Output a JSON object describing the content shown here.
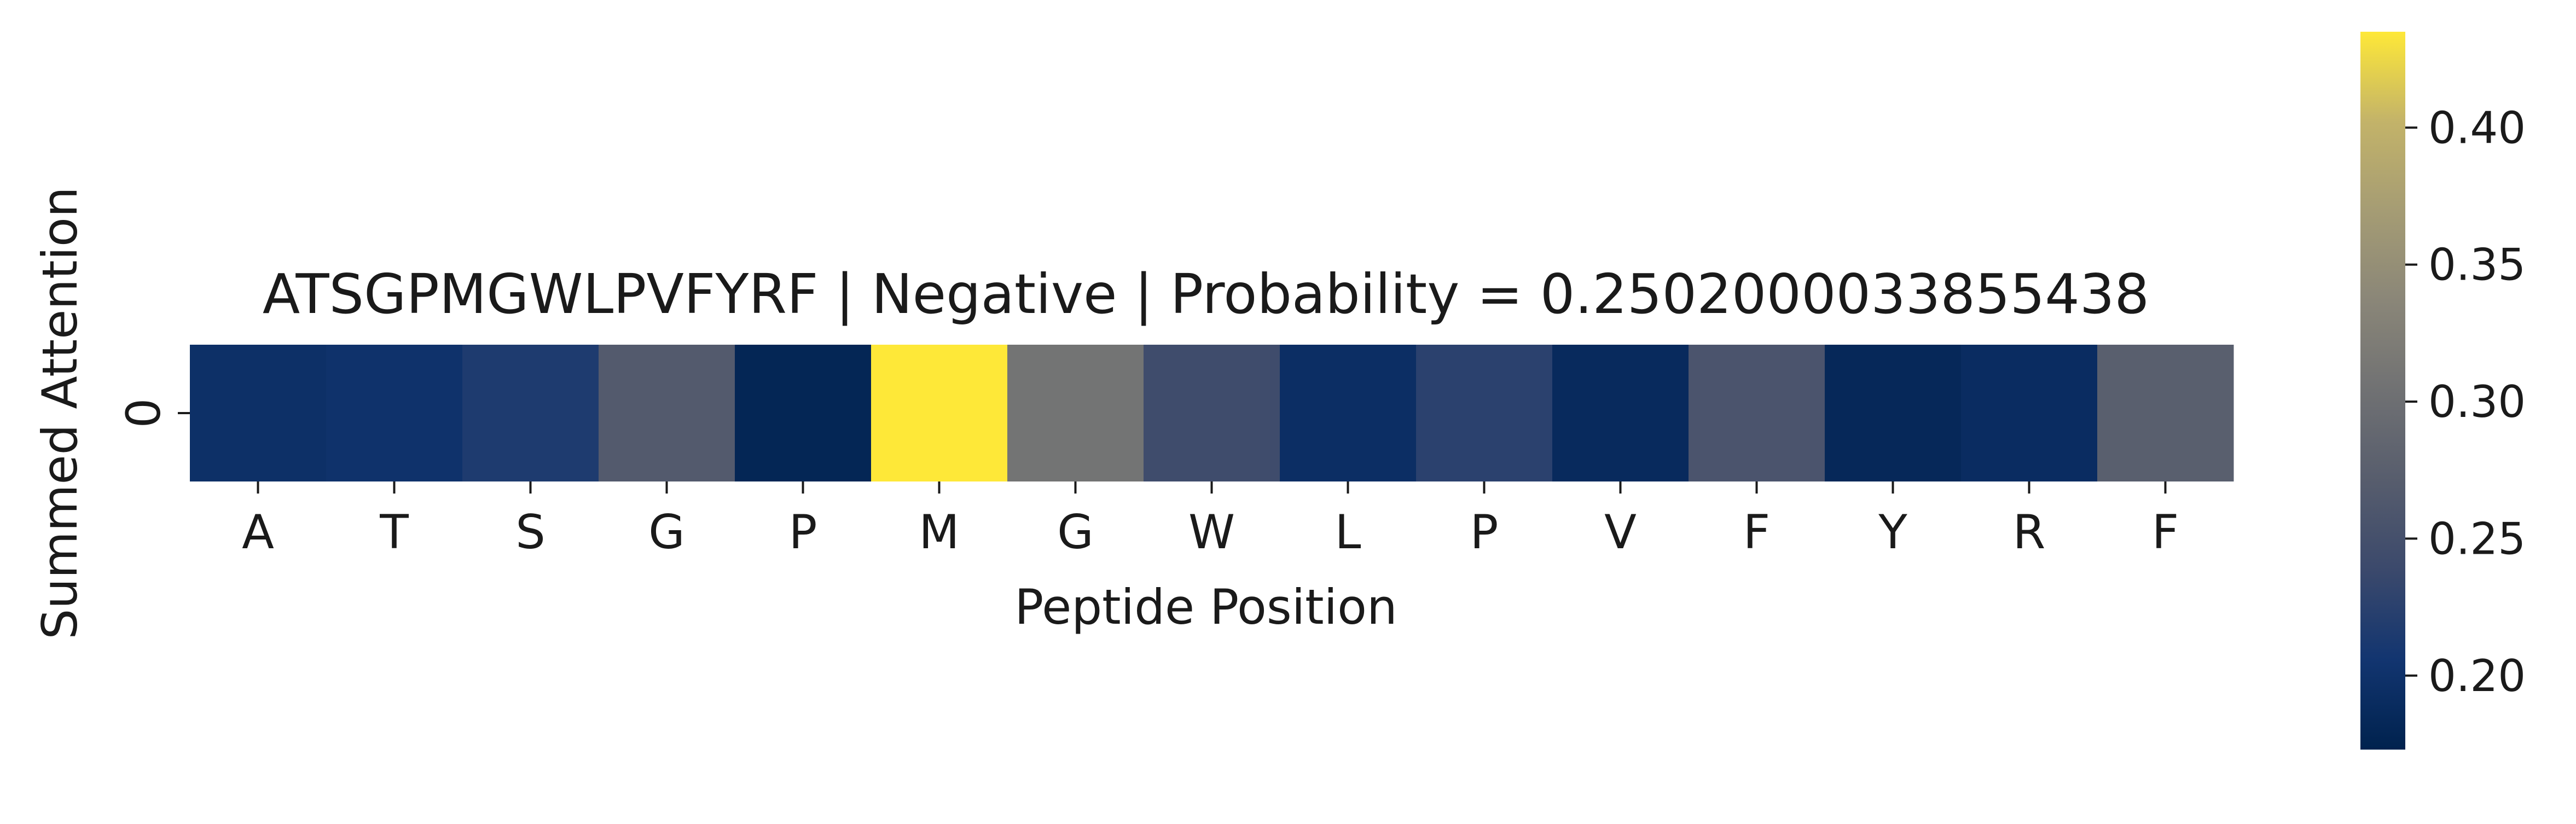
{
  "chart_data": {
    "type": "heatmap",
    "title": "ATSGPMGWLPVFYRF | Negative | Probability = 0.2502000033855438",
    "xlabel": "Peptide Position",
    "ylabel": "Summed Attention",
    "x_categories": [
      "A",
      "T",
      "S",
      "G",
      "P",
      "M",
      "G",
      "W",
      "L",
      "P",
      "V",
      "F",
      "Y",
      "R",
      "F"
    ],
    "y_categories": [
      "0"
    ],
    "values": [
      [
        0.197,
        0.201,
        0.215,
        0.267,
        0.18,
        0.435,
        0.308,
        0.243,
        0.194,
        0.226,
        0.187,
        0.257,
        0.184,
        0.191,
        0.274
      ]
    ],
    "colormap": "cividis",
    "colorbar": {
      "range": [
        0.173,
        0.435
      ],
      "ticks": [
        "0.20",
        "0.25",
        "0.30",
        "0.35",
        "0.40"
      ],
      "tick_values": [
        0.2,
        0.25,
        0.3,
        0.35,
        0.4
      ]
    },
    "grid": false,
    "legend": "none"
  }
}
